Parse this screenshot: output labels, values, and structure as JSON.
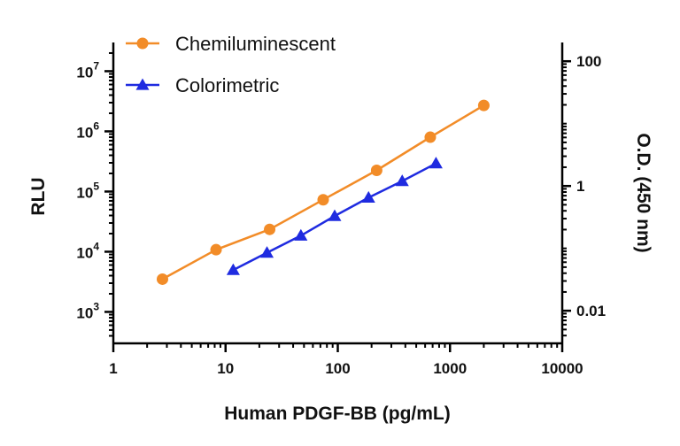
{
  "chart_data": {
    "type": "line",
    "xlabel": "Human PDGF-BB (pg/mL)",
    "ylabel": "RLU",
    "y2label": "O.D. (450 nm)",
    "x_scale": "log",
    "y_scale": "log",
    "y2_scale": "log",
    "xlim": [
      1,
      10000
    ],
    "ylim": [
      300,
      30000000
    ],
    "y2lim": [
      0.003,
      200
    ],
    "x_ticks": [
      1,
      10,
      100,
      1000,
      10000
    ],
    "x_tick_labels": [
      "1",
      "10",
      "100",
      "1000",
      "10000"
    ],
    "y_ticks": [
      1000,
      10000,
      100000,
      1000000,
      10000000
    ],
    "y_tick_labels": [
      {
        "base": "10",
        "exp": "3"
      },
      {
        "base": "10",
        "exp": "4"
      },
      {
        "base": "10",
        "exp": "5"
      },
      {
        "base": "10",
        "exp": "6"
      },
      {
        "base": "10",
        "exp": "7"
      }
    ],
    "y2_ticks": [
      0.01,
      1,
      100
    ],
    "y2_tick_labels": [
      "0.01",
      "1",
      "100"
    ],
    "grid": false,
    "legend_position": "top-left",
    "series": [
      {
        "name": "Chemiluminescent",
        "axis": "left",
        "marker": "circle",
        "color": "#F28C28",
        "x": [
          2.74,
          8.23,
          24.7,
          74.1,
          222,
          667,
          2000
        ],
        "y": [
          3500,
          10800,
          23500,
          73000,
          225000,
          800000,
          2700000
        ]
      },
      {
        "name": "Colorimetric",
        "axis": "right",
        "marker": "triangle",
        "color": "#1F2BE0",
        "x": [
          11.7,
          23.4,
          46.9,
          93.8,
          188,
          375,
          750
        ],
        "y": [
          0.045,
          0.085,
          0.16,
          0.33,
          0.65,
          1.2,
          2.3
        ]
      }
    ]
  }
}
